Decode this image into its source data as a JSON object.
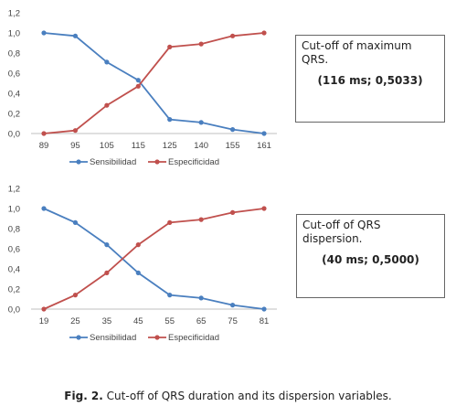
{
  "chart_data": [
    {
      "type": "line",
      "categories": [
        "89",
        "95",
        "105",
        "115",
        "125",
        "140",
        "155",
        "161"
      ],
      "series": [
        {
          "name": "Sensibilidad",
          "color": "#4a7fbf",
          "values": [
            1.0,
            0.97,
            0.71,
            0.53,
            0.14,
            0.11,
            0.04,
            0.0
          ]
        },
        {
          "name": "Especificidad",
          "color": "#c0504d",
          "values": [
            0.0,
            0.03,
            0.28,
            0.47,
            0.86,
            0.89,
            0.97,
            1.0
          ]
        }
      ],
      "yticks": [
        "0,0",
        "0,2",
        "0,4",
        "0,6",
        "0,8",
        "1,0",
        "1,2"
      ],
      "ylim": [
        0,
        1.2
      ],
      "legend": "bottom",
      "grid": false
    },
    {
      "type": "line",
      "categories": [
        "19",
        "25",
        "35",
        "45",
        "55",
        "65",
        "75",
        "81"
      ],
      "series": [
        {
          "name": "Sensibilidad",
          "color": "#4a7fbf",
          "values": [
            1.0,
            0.86,
            0.64,
            0.36,
            0.14,
            0.11,
            0.04,
            0.0
          ]
        },
        {
          "name": "Especificidad",
          "color": "#c0504d",
          "values": [
            0.0,
            0.14,
            0.36,
            0.64,
            0.86,
            0.89,
            0.96,
            1.0
          ]
        }
      ],
      "yticks": [
        "0,0",
        "0,2",
        "0,4",
        "0,6",
        "0,8",
        "1,0",
        "1,2"
      ],
      "ylim": [
        0,
        1.2
      ],
      "legend": "bottom",
      "grid": false
    }
  ],
  "boxes": [
    {
      "heading": "Cut-off of maximum QRS.",
      "values": "(116 ms; 0,5033)"
    },
    {
      "heading": "Cut-off of QRS dispersion.",
      "values": "(40 ms; 0,5000)"
    }
  ],
  "caption": {
    "label": "Fig. 2.",
    "text": "Cut-off of QRS duration and its dispersion variables."
  }
}
